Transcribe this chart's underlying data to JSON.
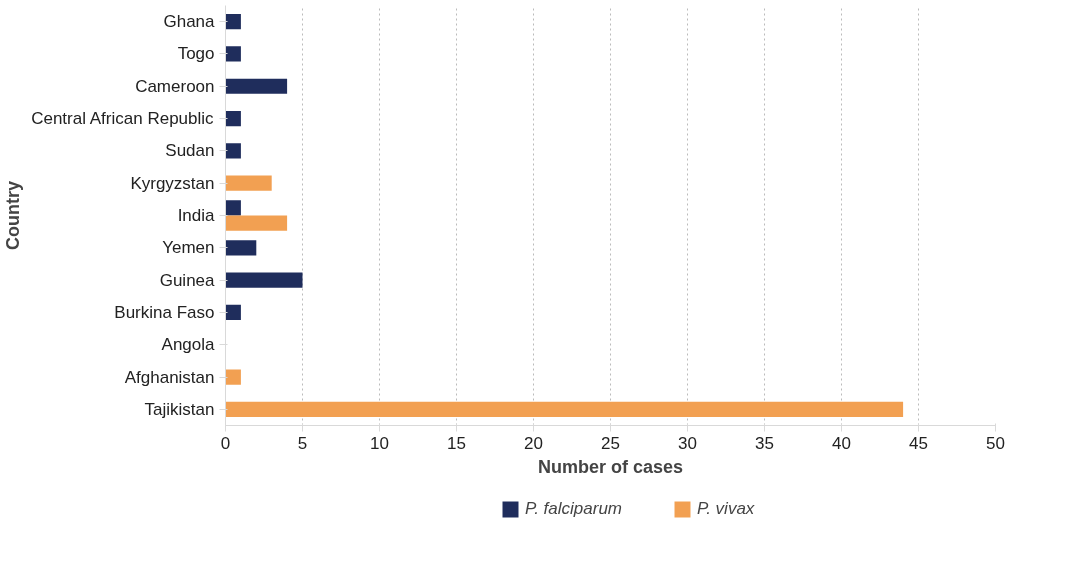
{
  "chart_data": {
    "type": "bar",
    "orientation": "horizontal",
    "xlabel": "Number of cases",
    "ylabel": "Country",
    "categories": [
      "Ghana",
      "Togo",
      "Cameroon",
      "Central African Republic",
      "Sudan",
      "Kyrgyzstan",
      "India",
      "Yemen",
      "Guinea",
      "Burkina Faso",
      "Angola",
      "Afghanistan",
      "Tajikistan"
    ],
    "series": [
      {
        "name": "P. falciparum",
        "color": "#1f2d5c",
        "values": [
          1,
          1,
          4,
          1,
          1,
          null,
          1,
          2,
          5,
          1,
          null,
          null,
          null
        ]
      },
      {
        "name": "P. vivax",
        "color": "#f2a052",
        "values": [
          null,
          null,
          null,
          null,
          null,
          3,
          4,
          null,
          null,
          null,
          null,
          1,
          44
        ]
      }
    ],
    "xlim": [
      0,
      50
    ],
    "xticks": [
      0,
      5,
      10,
      15,
      20,
      25,
      30,
      35,
      40,
      45,
      50
    ],
    "grid": "x",
    "legend": "bottom"
  }
}
